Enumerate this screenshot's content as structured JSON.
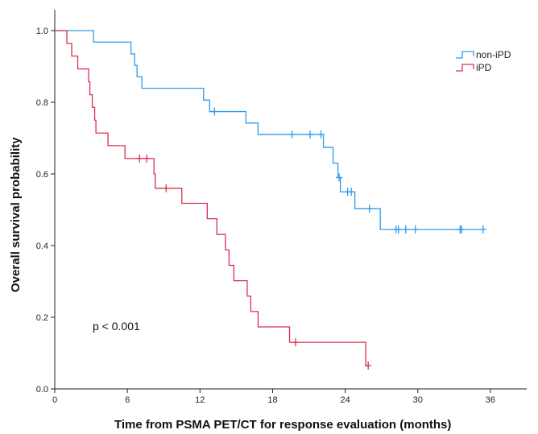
{
  "chart_data": {
    "type": "line",
    "subtype": "kaplan-meier",
    "xlabel": "Time from PSMA PET/CT for response evaluation (months)",
    "ylabel": "Overall survival probability",
    "xlim": [
      0,
      39
    ],
    "ylim": [
      0,
      1.0
    ],
    "xticks": [
      0,
      6,
      12,
      18,
      24,
      30,
      36
    ],
    "yticks": [
      0.0,
      0.2,
      0.4,
      0.6,
      0.8,
      1.0
    ],
    "xtick_labels": [
      "0",
      "6",
      "12",
      "18",
      "24",
      "30",
      "36"
    ],
    "ytick_labels": [
      "0.0",
      "0.2",
      "0.4",
      "0.6",
      "0.8",
      "1.0"
    ],
    "grid": false,
    "legend_position": "top-right",
    "annotation": "p < 0.001",
    "series": [
      {
        "name": "non-iPD",
        "color": "#2f9bea",
        "steps": [
          [
            0,
            1.0
          ],
          [
            3.2,
            0.968
          ],
          [
            6.3,
            0.935
          ],
          [
            6.6,
            0.903
          ],
          [
            6.8,
            0.871
          ],
          [
            7.2,
            0.839
          ],
          [
            12.3,
            0.806
          ],
          [
            12.8,
            0.774
          ],
          [
            15.8,
            0.742
          ],
          [
            16.8,
            0.71
          ],
          [
            22.2,
            0.674
          ],
          [
            23.0,
            0.63
          ],
          [
            23.4,
            0.59
          ],
          [
            23.6,
            0.55
          ],
          [
            24.8,
            0.503
          ],
          [
            26.9,
            0.445
          ],
          [
            35.4,
            0.445
          ]
        ],
        "censored": [
          [
            13.2,
            0.774
          ],
          [
            19.6,
            0.71
          ],
          [
            21.1,
            0.71
          ],
          [
            22.0,
            0.71
          ],
          [
            23.5,
            0.59
          ],
          [
            24.2,
            0.55
          ],
          [
            24.5,
            0.55
          ],
          [
            26.0,
            0.503
          ],
          [
            28.2,
            0.445
          ],
          [
            28.4,
            0.445
          ],
          [
            29.0,
            0.445
          ],
          [
            29.8,
            0.445
          ],
          [
            33.5,
            0.445
          ],
          [
            33.6,
            0.445
          ],
          [
            35.4,
            0.445
          ]
        ]
      },
      {
        "name": "iPD",
        "color": "#d9304f",
        "steps": [
          [
            0,
            1.0
          ],
          [
            1.0,
            0.964
          ],
          [
            1.4,
            0.929
          ],
          [
            1.9,
            0.893
          ],
          [
            2.8,
            0.857
          ],
          [
            2.9,
            0.821
          ],
          [
            3.1,
            0.786
          ],
          [
            3.3,
            0.75
          ],
          [
            3.4,
            0.714
          ],
          [
            4.4,
            0.679
          ],
          [
            5.8,
            0.643
          ],
          [
            8.2,
            0.6
          ],
          [
            8.3,
            0.56
          ],
          [
            10.5,
            0.518
          ],
          [
            12.6,
            0.475
          ],
          [
            13.4,
            0.431
          ],
          [
            14.1,
            0.388
          ],
          [
            14.4,
            0.345
          ],
          [
            14.8,
            0.302
          ],
          [
            15.9,
            0.259
          ],
          [
            16.2,
            0.216
          ],
          [
            16.8,
            0.173
          ],
          [
            19.4,
            0.13
          ],
          [
            25.7,
            0.065
          ]
        ],
        "censored": [
          [
            7.0,
            0.643
          ],
          [
            7.6,
            0.643
          ],
          [
            9.2,
            0.56
          ],
          [
            19.9,
            0.13
          ],
          [
            25.9,
            0.065
          ]
        ]
      }
    ]
  }
}
